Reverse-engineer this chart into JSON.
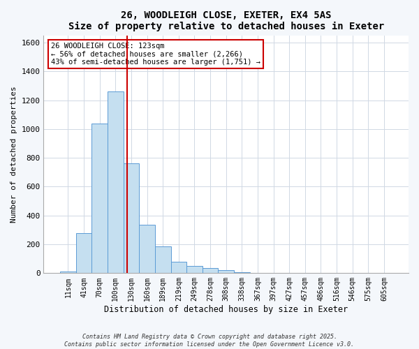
{
  "title": "26, WOODLEIGH CLOSE, EXETER, EX4 5AS",
  "subtitle": "Size of property relative to detached houses in Exeter",
  "xlabel": "Distribution of detached houses by size in Exeter",
  "ylabel": "Number of detached properties",
  "bar_labels": [
    "11sqm",
    "41sqm",
    "70sqm",
    "100sqm",
    "130sqm",
    "160sqm",
    "189sqm",
    "219sqm",
    "249sqm",
    "278sqm",
    "308sqm",
    "338sqm",
    "367sqm",
    "397sqm",
    "427sqm",
    "457sqm",
    "486sqm",
    "516sqm",
    "546sqm",
    "575sqm",
    "605sqm"
  ],
  "bar_heights": [
    10,
    280,
    1040,
    1260,
    760,
    335,
    185,
    80,
    50,
    35,
    20,
    5,
    0,
    0,
    0,
    0,
    0,
    0,
    0,
    0,
    0
  ],
  "bar_color": "#c5dff0",
  "bar_edgecolor": "#5b9bd5",
  "vline_x": 3.72,
  "vline_color": "#cc0000",
  "ylim": [
    0,
    1650
  ],
  "yticks": [
    0,
    200,
    400,
    600,
    800,
    1000,
    1200,
    1400,
    1600
  ],
  "annotation_text": "26 WOODLEIGH CLOSE: 123sqm\n← 56% of detached houses are smaller (2,266)\n43% of semi-detached houses are larger (1,751) →",
  "annotation_box_edgecolor": "#cc0000",
  "footnote1": "Contains HM Land Registry data © Crown copyright and database right 2025.",
  "footnote2": "Contains public sector information licensed under the Open Government Licence v3.0.",
  "bg_color": "#f4f7fb",
  "plot_bg_color": "#ffffff",
  "grid_color": "#d0d8e4"
}
